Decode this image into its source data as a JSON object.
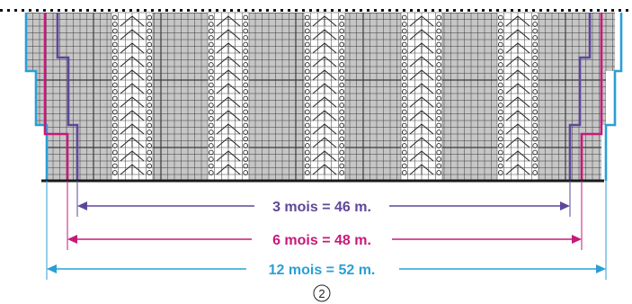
{
  "sizes": [
    {
      "label": "3 mois = 46 m.",
      "color": "#5e479a"
    },
    {
      "label": "6 mois = 48 m.",
      "color": "#c8187a"
    },
    {
      "label": "12 mois = 52 m.",
      "color": "#2a9fd6"
    }
  ],
  "chart_number": "2",
  "colors": {
    "grid_fill": "#c6c6c6",
    "grid_line": "#3a3a3a",
    "lace_panel": "#ffffff",
    "base_line": "#1a1a1a"
  },
  "icons": {
    "lace_symbol": "yarn-over-circle",
    "decrease_symbol": "double-decrease-chevron"
  }
}
